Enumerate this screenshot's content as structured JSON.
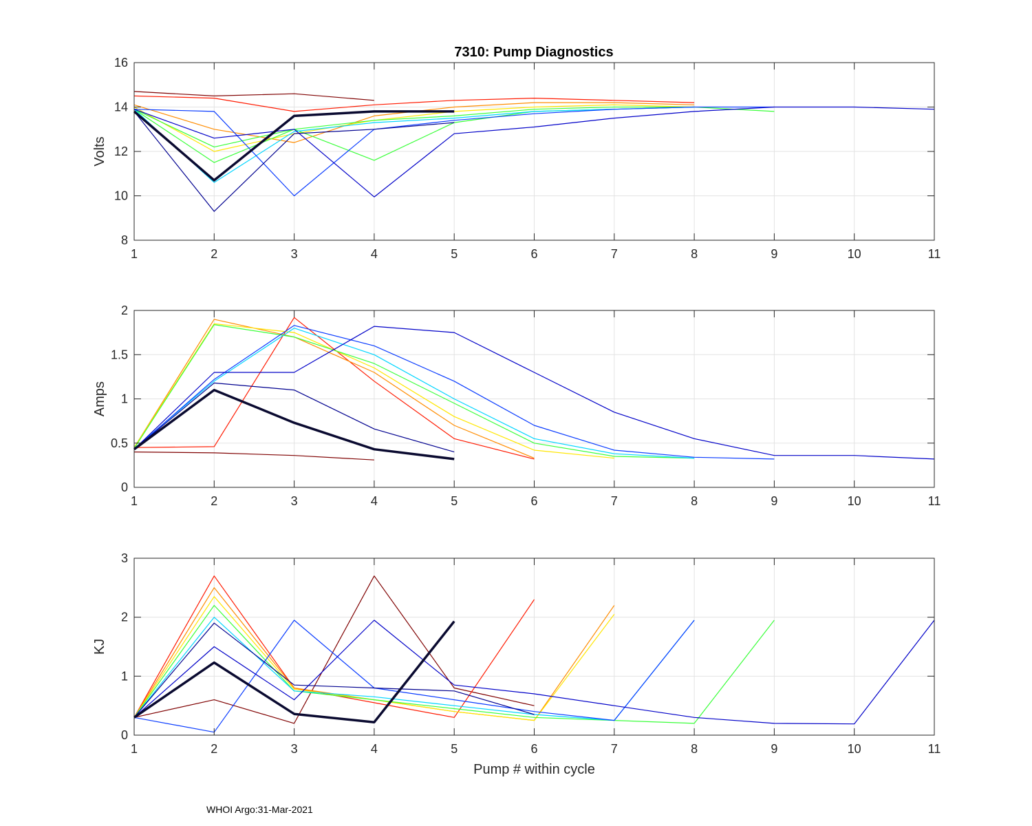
{
  "figure": {
    "title": "7310: Pump Diagnostics",
    "footer": "WHOI Argo:31-Mar-2021"
  },
  "chart_data": [
    {
      "type": "line",
      "id": "volts",
      "title": "7310: Pump Diagnostics",
      "xlabel": "",
      "ylabel": "Volts",
      "xlim": [
        1,
        11
      ],
      "ylim": [
        8,
        16
      ],
      "xticks": [
        1,
        2,
        3,
        4,
        5,
        6,
        7,
        8,
        9,
        10,
        11
      ],
      "yticks": [
        8,
        10,
        12,
        14,
        16
      ],
      "grid": true,
      "colormap": "jet (one line per profile cycle)",
      "series": [
        {
          "name": "representative-dark-red",
          "color": "#7f0000",
          "x": [
            1,
            2,
            3,
            4
          ],
          "y": [
            14.7,
            14.5,
            14.6,
            14.3
          ]
        },
        {
          "name": "representative-red",
          "color": "#ff1a00",
          "x": [
            1,
            2,
            3,
            4,
            5,
            6,
            7,
            8
          ],
          "y": [
            14.5,
            14.4,
            13.8,
            14.1,
            14.3,
            14.4,
            14.3,
            14.2
          ]
        },
        {
          "name": "representative-orange",
          "color": "#ff8c00",
          "x": [
            1,
            2,
            3,
            4,
            5,
            6,
            7,
            8
          ],
          "y": [
            14.1,
            13.0,
            12.4,
            13.6,
            14.0,
            14.2,
            14.2,
            14.1
          ]
        },
        {
          "name": "representative-yellow",
          "color": "#ffe600",
          "x": [
            1,
            2,
            3,
            4,
            5,
            6,
            7,
            8
          ],
          "y": [
            14.0,
            12.0,
            12.8,
            13.4,
            13.8,
            14.0,
            14.1,
            14.0
          ]
        },
        {
          "name": "representative-green",
          "color": "#39ff39",
          "x": [
            1,
            2,
            3,
            4,
            5,
            6,
            7,
            8,
            9
          ],
          "y": [
            13.9,
            11.5,
            13.0,
            13.4,
            13.6,
            13.9,
            14.0,
            14.0,
            13.8
          ]
        },
        {
          "name": "representative-green-spike",
          "color": "#39ff39",
          "x": [
            1,
            2,
            3,
            4,
            5,
            6,
            7,
            8
          ],
          "y": [
            13.9,
            12.2,
            13.0,
            11.6,
            13.3,
            13.8,
            13.9,
            14.0
          ]
        },
        {
          "name": "representative-cyan",
          "color": "#00d5ff",
          "x": [
            1,
            2,
            3,
            4,
            5,
            6,
            7,
            8
          ],
          "y": [
            13.9,
            10.6,
            12.9,
            13.3,
            13.5,
            13.8,
            13.9,
            14.0
          ]
        },
        {
          "name": "representative-blue",
          "color": "#0a3cff",
          "x": [
            1,
            2,
            3,
            4,
            5,
            6,
            7,
            8,
            9
          ],
          "y": [
            13.9,
            13.8,
            10.0,
            13.0,
            13.4,
            13.7,
            13.9,
            14.0,
            14.0
          ]
        },
        {
          "name": "representative-blue-late",
          "color": "#0000c8",
          "x": [
            1,
            2,
            3,
            4,
            5,
            6,
            7,
            8,
            9,
            10,
            11
          ],
          "y": [
            13.9,
            12.6,
            13.0,
            9.95,
            12.8,
            13.1,
            13.5,
            13.8,
            14.0,
            14.0,
            13.9
          ]
        },
        {
          "name": "representative-navy",
          "color": "#00008f",
          "x": [
            1,
            2,
            3,
            4,
            5
          ],
          "y": [
            13.8,
            9.3,
            12.8,
            13.0,
            13.3
          ]
        },
        {
          "name": "highlight-latest",
          "color": "#0a0a30",
          "highlight": true,
          "x": [
            1,
            2,
            3,
            4,
            5
          ],
          "y": [
            13.8,
            10.7,
            13.6,
            13.8,
            13.8
          ]
        }
      ]
    },
    {
      "type": "line",
      "id": "amps",
      "title": "",
      "xlabel": "",
      "ylabel": "Amps",
      "xlim": [
        1,
        11
      ],
      "ylim": [
        0,
        2
      ],
      "xticks": [
        1,
        2,
        3,
        4,
        5,
        6,
        7,
        8,
        9,
        10,
        11
      ],
      "yticks": [
        0,
        0.5,
        1,
        1.5,
        2
      ],
      "grid": true,
      "colormap": "jet (one line per profile cycle)",
      "series": [
        {
          "name": "representative-dark-red",
          "color": "#7f0000",
          "x": [
            1,
            2,
            3,
            4
          ],
          "y": [
            0.4,
            0.39,
            0.36,
            0.31
          ]
        },
        {
          "name": "representative-red",
          "color": "#ff1a00",
          "x": [
            1,
            2,
            3,
            4,
            5,
            6
          ],
          "y": [
            0.45,
            0.46,
            1.92,
            1.2,
            0.55,
            0.32
          ]
        },
        {
          "name": "representative-orange",
          "color": "#ff8c00",
          "x": [
            1,
            2,
            3,
            4,
            5,
            6
          ],
          "y": [
            0.45,
            1.9,
            1.7,
            1.3,
            0.7,
            0.33
          ]
        },
        {
          "name": "representative-yellow",
          "color": "#ffe600",
          "x": [
            1,
            2,
            3,
            4,
            5,
            6,
            7
          ],
          "y": [
            0.45,
            1.85,
            1.75,
            1.35,
            0.8,
            0.42,
            0.33
          ]
        },
        {
          "name": "representative-green",
          "color": "#39ff39",
          "x": [
            1,
            2,
            3,
            4,
            5,
            6,
            7,
            8
          ],
          "y": [
            0.44,
            1.84,
            1.7,
            1.4,
            0.95,
            0.5,
            0.35,
            0.33
          ]
        },
        {
          "name": "representative-cyan",
          "color": "#00d5ff",
          "x": [
            1,
            2,
            3,
            4,
            5,
            6,
            7,
            8
          ],
          "y": [
            0.44,
            1.2,
            1.8,
            1.5,
            1.0,
            0.55,
            0.38,
            0.33
          ]
        },
        {
          "name": "representative-blue",
          "color": "#0a3cff",
          "x": [
            1,
            2,
            3,
            4,
            5,
            6,
            7,
            8,
            9
          ],
          "y": [
            0.43,
            1.22,
            1.83,
            1.6,
            1.2,
            0.7,
            0.42,
            0.34,
            0.32
          ]
        },
        {
          "name": "representative-blue-late",
          "color": "#0000c8",
          "x": [
            1,
            2,
            3,
            4,
            5,
            6,
            7,
            8,
            9,
            10,
            11
          ],
          "y": [
            0.43,
            1.3,
            1.3,
            1.82,
            1.75,
            1.3,
            0.85,
            0.55,
            0.36,
            0.36,
            0.32
          ]
        },
        {
          "name": "representative-navy",
          "color": "#00008f",
          "x": [
            1,
            2,
            3,
            4,
            5
          ],
          "y": [
            0.43,
            1.18,
            1.1,
            0.66,
            0.4
          ]
        },
        {
          "name": "highlight-latest",
          "color": "#0a0a30",
          "highlight": true,
          "x": [
            1,
            2,
            3,
            4,
            5
          ],
          "y": [
            0.43,
            1.1,
            0.73,
            0.43,
            0.32
          ]
        }
      ]
    },
    {
      "type": "line",
      "id": "kj",
      "title": "",
      "xlabel": "Pump # within cycle",
      "ylabel": "KJ",
      "xlim": [
        1,
        11
      ],
      "ylim": [
        0,
        3
      ],
      "xticks": [
        1,
        2,
        3,
        4,
        5,
        6,
        7,
        8,
        9,
        10,
        11
      ],
      "yticks": [
        0,
        1,
        2,
        3
      ],
      "grid": true,
      "colormap": "jet (one line per profile cycle)",
      "series": [
        {
          "name": "representative-dark-red",
          "color": "#7f0000",
          "x": [
            1,
            2,
            3,
            4,
            5,
            6
          ],
          "y": [
            0.3,
            0.6,
            0.2,
            2.7,
            0.8,
            0.5
          ]
        },
        {
          "name": "representative-red",
          "color": "#ff1a00",
          "x": [
            1,
            2,
            3,
            4,
            5,
            6
          ],
          "y": [
            0.3,
            2.7,
            0.8,
            0.55,
            0.3,
            2.3
          ]
        },
        {
          "name": "representative-orange",
          "color": "#ff8c00",
          "x": [
            1,
            2,
            3,
            4,
            5,
            6,
            7
          ],
          "y": [
            0.3,
            2.5,
            0.8,
            0.6,
            0.4,
            0.25,
            2.2
          ]
        },
        {
          "name": "representative-yellow",
          "color": "#ffe600",
          "x": [
            1,
            2,
            3,
            4,
            5,
            6,
            7
          ],
          "y": [
            0.3,
            2.35,
            0.78,
            0.6,
            0.4,
            0.25,
            2.05
          ]
        },
        {
          "name": "representative-green",
          "color": "#39ff39",
          "x": [
            1,
            2,
            3,
            4,
            5,
            6,
            7,
            8,
            9
          ],
          "y": [
            0.3,
            2.2,
            0.75,
            0.6,
            0.45,
            0.3,
            0.25,
            0.2,
            1.95
          ]
        },
        {
          "name": "representative-cyan",
          "color": "#00d5ff",
          "x": [
            1,
            2,
            3,
            4,
            5,
            6,
            7,
            8
          ],
          "y": [
            0.3,
            2.0,
            0.75,
            0.65,
            0.5,
            0.35,
            0.25,
            1.95
          ]
        },
        {
          "name": "representative-blue",
          "color": "#0a3cff",
          "x": [
            1,
            2,
            3,
            4,
            5,
            6,
            7,
            8
          ],
          "y": [
            0.3,
            0.05,
            1.95,
            0.8,
            0.6,
            0.4,
            0.25,
            1.95
          ]
        },
        {
          "name": "representative-blue-late",
          "color": "#0000c8",
          "x": [
            1,
            2,
            3,
            4,
            5,
            6,
            7,
            8,
            9,
            10,
            11
          ],
          "y": [
            0.3,
            1.5,
            0.6,
            1.95,
            0.85,
            0.7,
            0.5,
            0.3,
            0.2,
            0.19,
            1.95
          ]
        },
        {
          "name": "representative-navy",
          "color": "#00008f",
          "x": [
            1,
            2,
            3,
            4,
            5,
            6
          ],
          "y": [
            0.3,
            1.9,
            0.85,
            0.8,
            0.75,
            0.35
          ]
        },
        {
          "name": "highlight-latest",
          "color": "#0a0a30",
          "highlight": true,
          "x": [
            1,
            2,
            3,
            4,
            5
          ],
          "y": [
            0.3,
            1.23,
            0.36,
            0.22,
            1.93
          ]
        }
      ]
    }
  ]
}
